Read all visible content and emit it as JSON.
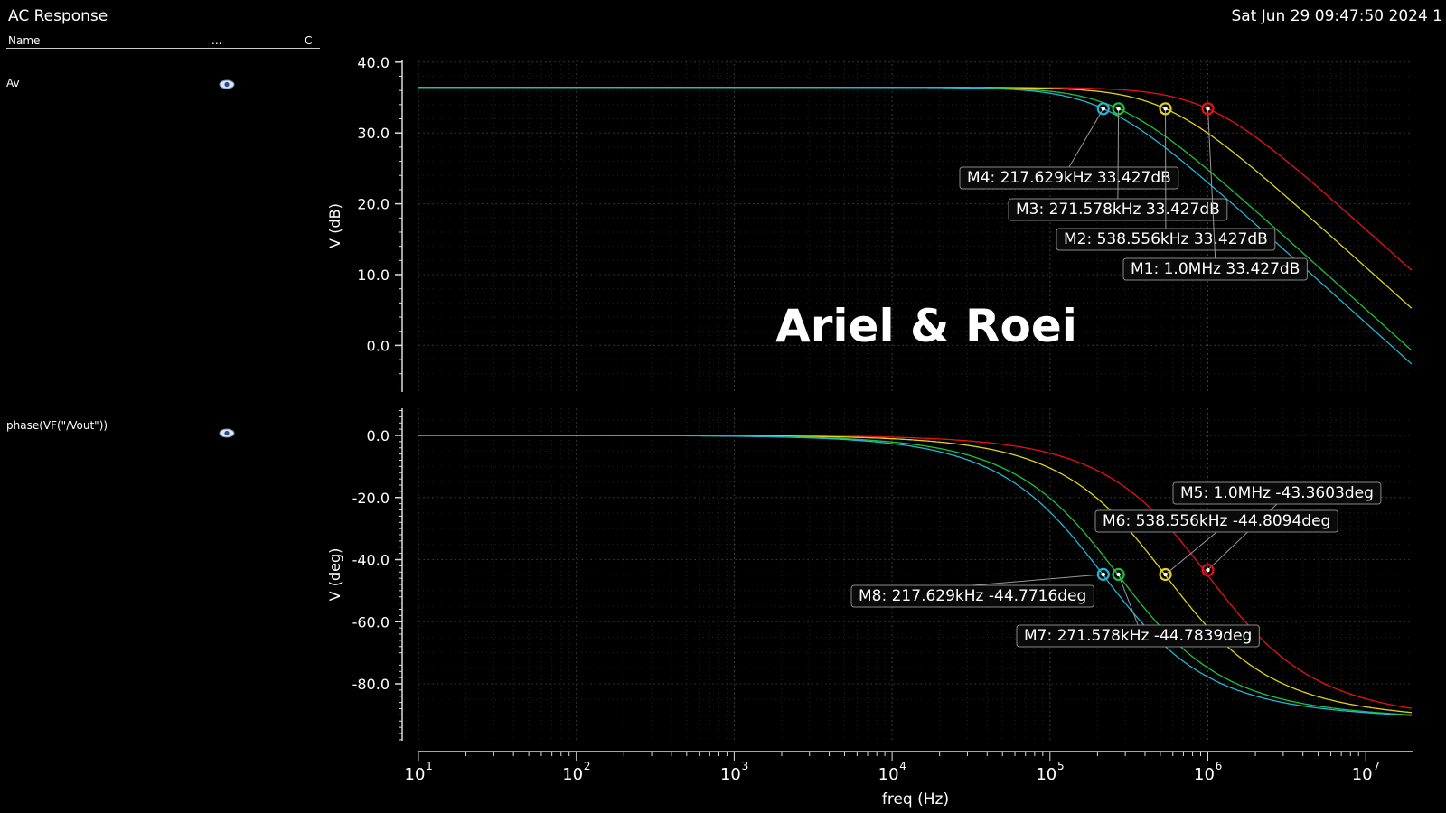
{
  "window": {
    "title": "AC Response",
    "timestamp": "Sat Jun 29 09:47:50 2024  1"
  },
  "legend": {
    "columns": [
      "Name",
      "...",
      "C"
    ],
    "items": [
      {
        "label": "Av",
        "icon": "eye-icon"
      },
      {
        "label": "phase(VF(\"/Vout\"))",
        "icon": "eye-icon"
      }
    ]
  },
  "watermark": "Ariel & Roei",
  "colors": {
    "red": "#e8101a",
    "yellow": "#e3d11b",
    "green": "#19c43b",
    "cyan": "#1fb8d4",
    "background": "#000000",
    "grid": "#3a3a3a"
  },
  "chart_data": [
    {
      "type": "line",
      "title": "",
      "xlabel": "freq (Hz)",
      "ylabel": "V (dB)",
      "xscale": "log",
      "xlim": [
        10,
        20000000
      ],
      "ylim": [
        -6,
        40
      ],
      "yticks": [
        "40.0",
        "30.0",
        "20.0",
        "10.0",
        "0.0"
      ],
      "xticks": [
        "10",
        "100",
        "1000",
        "10000",
        "100000",
        "1000000",
        "10000000"
      ],
      "grid": true,
      "series": [
        {
          "color": "red",
          "dc_gain_db": 36.437,
          "corner_hz": 1000000
        },
        {
          "color": "yellow",
          "dc_gain_db": 36.437,
          "corner_hz": 538556
        },
        {
          "color": "green",
          "dc_gain_db": 36.437,
          "corner_hz": 271578
        },
        {
          "color": "cyan",
          "dc_gain_db": 36.437,
          "corner_hz": 217629
        }
      ],
      "markers": [
        {
          "label": "M4: 217.629kHz 33.427dB",
          "x": 217629,
          "y": 33.427,
          "color": "cyan"
        },
        {
          "label": "M3: 271.578kHz 33.427dB",
          "x": 271578,
          "y": 33.427,
          "color": "green"
        },
        {
          "label": "M2: 538.556kHz 33.427dB",
          "x": 538556,
          "y": 33.427,
          "color": "yellow"
        },
        {
          "label": "M1: 1.0MHz 33.427dB",
          "x": 1000000,
          "y": 33.427,
          "color": "red"
        }
      ]
    },
    {
      "type": "line",
      "title": "",
      "xlabel": "freq (Hz)",
      "ylabel": "V (deg)",
      "xscale": "log",
      "xlim": [
        10,
        20000000
      ],
      "ylim": [
        -100,
        10
      ],
      "yticks": [
        "0.0",
        "-20.0",
        "-40.0",
        "-60.0",
        "-80.0"
      ],
      "xticks": [
        "10",
        "100",
        "1000",
        "10000",
        "100000",
        "1000000",
        "10000000"
      ],
      "grid": true,
      "series": [
        {
          "color": "red",
          "corner_hz": 1000000
        },
        {
          "color": "yellow",
          "corner_hz": 538556
        },
        {
          "color": "green",
          "corner_hz": 271578
        },
        {
          "color": "cyan",
          "corner_hz": 217629
        }
      ],
      "markers": [
        {
          "label": "M5: 1.0MHz -43.3603deg",
          "x": 1000000,
          "y": -43.3603,
          "color": "red"
        },
        {
          "label": "M6: 538.556kHz -44.8094deg",
          "x": 538556,
          "y": -44.8094,
          "color": "yellow"
        },
        {
          "label": "M8: 217.629kHz -44.7716deg",
          "x": 217629,
          "y": -44.7716,
          "color": "cyan"
        },
        {
          "label": "M7: 271.578kHz -44.7839deg",
          "x": 271578,
          "y": -44.7839,
          "color": "green"
        }
      ]
    }
  ]
}
